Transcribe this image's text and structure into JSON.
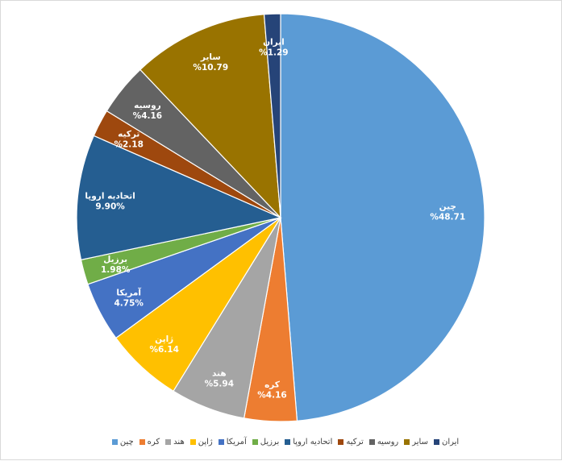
{
  "chart_data": {
    "type": "pie",
    "title": "",
    "start_angle_deg": 0,
    "direction": "clockwise",
    "legend_position": "bottom",
    "slices": [
      {
        "label": "چین",
        "value": 48.71,
        "display": "%48.71",
        "color": "#5b9bd5"
      },
      {
        "label": "کره",
        "value": 4.16,
        "display": "%4.16",
        "color": "#ed7d31"
      },
      {
        "label": "هند",
        "value": 5.94,
        "display": "%5.94",
        "color": "#a5a5a5"
      },
      {
        "label": "ژاپن",
        "value": 6.14,
        "display": "%6.14",
        "color": "#ffc000"
      },
      {
        "label": "آمریکا",
        "value": 4.75,
        "display": "4.75%",
        "color": "#4472c4"
      },
      {
        "label": "برزیل",
        "value": 1.98,
        "display": "1.98%",
        "color": "#70ad47"
      },
      {
        "label": "اتحادیه اروپا",
        "value": 9.9,
        "display": "9.90%",
        "color": "#255e91"
      },
      {
        "label": "ترکیه",
        "value": 2.18,
        "display": "%2.18",
        "color": "#9e480e"
      },
      {
        "label": "روسیه",
        "value": 4.16,
        "display": "%4.16",
        "color": "#636363"
      },
      {
        "label": "سایر",
        "value": 10.79,
        "display": "%10.79",
        "color": "#997300"
      },
      {
        "label": "ایران",
        "value": 1.29,
        "display": "%1.29",
        "color": "#264478"
      }
    ]
  }
}
